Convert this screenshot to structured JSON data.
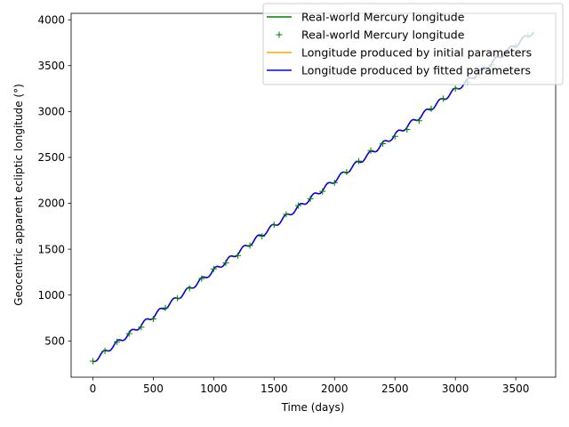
{
  "chart_data": {
    "type": "line",
    "xlabel": "Time (days)",
    "ylabel": "Geocentric apparent ecliptic longitude (°)",
    "xlim": [
      -180,
      3830
    ],
    "ylim": [
      105,
      4070
    ],
    "xticks": [
      0,
      500,
      1000,
      1500,
      2000,
      2500,
      3000,
      3500
    ],
    "yticks": [
      500,
      1000,
      1500,
      2000,
      2500,
      3000,
      3500,
      4000
    ],
    "grid": false,
    "legend_position": "top-right",
    "legend": [
      {
        "label": "Real-world Mercury longitude",
        "marker": "line",
        "color": "#008000"
      },
      {
        "label": "Real-world Mercury longitude",
        "marker": "plus",
        "color": "#008000"
      },
      {
        "label": "Longitude produced by initial parameters",
        "marker": "line",
        "color": "#ffa500"
      },
      {
        "label": "Longitude produced by fitted parameters",
        "marker": "line",
        "color": "#0000ff"
      }
    ],
    "model": {
      "start_value": 280,
      "mean_rate_deg_per_day": 0.985,
      "oscillation_amplitude_deg": 25,
      "oscillation_period_days": 116
    },
    "series": [
      {
        "name": "Real-world Mercury longitude",
        "style": "line",
        "color": "#008000",
        "x_range": [
          0,
          3650
        ]
      },
      {
        "name": "Real-world Mercury longitude",
        "style": "markers",
        "color": "#008000",
        "x": [
          0,
          100,
          200,
          300,
          400,
          500,
          600,
          700,
          800,
          900,
          1000,
          1100,
          1200,
          1300,
          1400,
          1500,
          1600,
          1700,
          1800,
          1900,
          2000,
          2100,
          2200,
          2300,
          2400,
          2500,
          2600,
          2700,
          2800,
          2900,
          3000,
          3100,
          3200,
          3300,
          3400,
          3500,
          3600
        ],
        "y": [
          280,
          390,
          490,
          580,
          650,
          740,
          860,
          965,
          1075,
          1180,
          1285,
          1350,
          1430,
          1540,
          1640,
          1765,
          1880,
          1975,
          2050,
          2130,
          2225,
          2340,
          2460,
          2575,
          2650,
          2730,
          2805,
          2900,
          3030,
          3140,
          3250,
          3320,
          3410,
          3510,
          3620,
          3720,
          3825
        ]
      },
      {
        "name": "Longitude produced by initial parameters",
        "style": "line",
        "color": "#ffa500",
        "x_range": [
          0,
          3650
        ]
      },
      {
        "name": "Longitude produced by fitted parameters",
        "style": "line",
        "color": "#0000ff",
        "x_range": [
          0,
          3650
        ]
      }
    ]
  }
}
